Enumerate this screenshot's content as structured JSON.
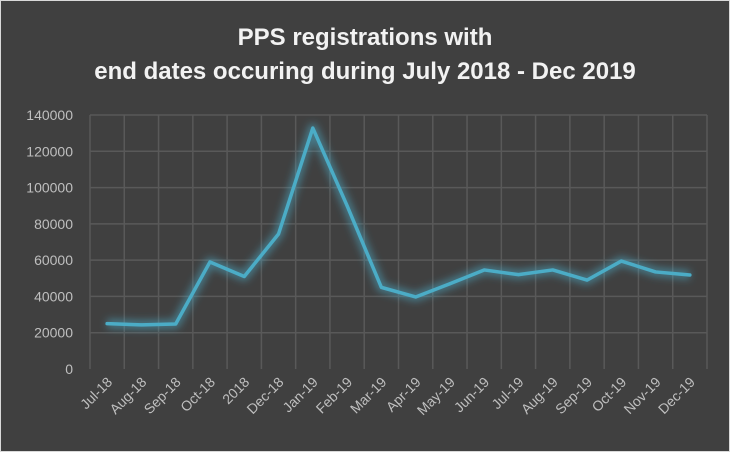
{
  "chart_data": {
    "type": "line",
    "title_line1": "PPS registrations with",
    "title_line2": "end dates occuring during July 2018 - Dec 2019",
    "xlabel": "",
    "ylabel": "",
    "categories": [
      "Jul-18",
      "Aug-18",
      "Sep-18",
      "Oct-18",
      "2018",
      "Dec-18",
      "Jan-19",
      "Feb-19",
      "Mar-19",
      "Apr-19",
      "May-19",
      "Jun-19",
      "Jul-19",
      "Aug-19",
      "Sep-19",
      "Oct-19",
      "Nov-19",
      "Dec-19"
    ],
    "values": [
      25000,
      24300,
      24800,
      59000,
      51000,
      74400,
      132800,
      90000,
      45000,
      39700,
      47000,
      54600,
      52000,
      54600,
      49000,
      59500,
      53500,
      51800
    ],
    "ylim": [
      0,
      140000
    ],
    "yticks": [
      "0",
      "20000",
      "40000",
      "60000",
      "80000",
      "100000",
      "120000",
      "140000"
    ],
    "grid": true,
    "line_color": "#4bacc6",
    "background": "#404040"
  }
}
